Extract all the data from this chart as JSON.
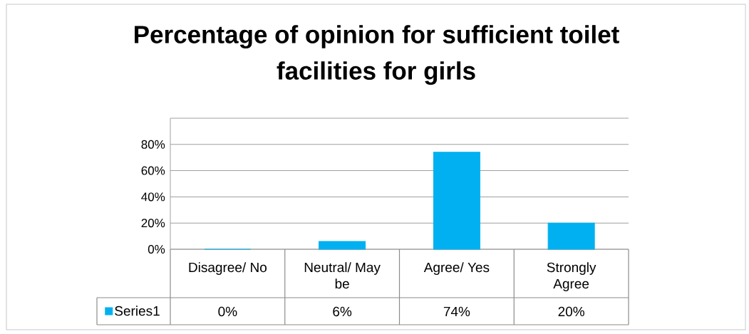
{
  "chart_data": {
    "type": "bar",
    "title": "Percentage of opinion for sufficient toilet facilities for girls",
    "categories": [
      "Disagree/ No",
      "Neutral/ May be",
      "Agree/ Yes",
      "Strongly Agree"
    ],
    "series": [
      {
        "name": "Series1",
        "color": "#00b0f0",
        "values": [
          0,
          6,
          74,
          20
        ],
        "value_labels": [
          "0%",
          "6%",
          "74%",
          "20%"
        ]
      }
    ],
    "ylim": [
      0,
      100
    ],
    "yticks": [
      {
        "value": 0,
        "label": "0%"
      },
      {
        "value": 20,
        "label": "20%"
      },
      {
        "value": 40,
        "label": "40%"
      },
      {
        "value": 60,
        "label": "60%"
      },
      {
        "value": 80,
        "label": "80%"
      },
      {
        "value": 100,
        "label": null
      }
    ],
    "grid": "y",
    "legend": "bottom left"
  }
}
